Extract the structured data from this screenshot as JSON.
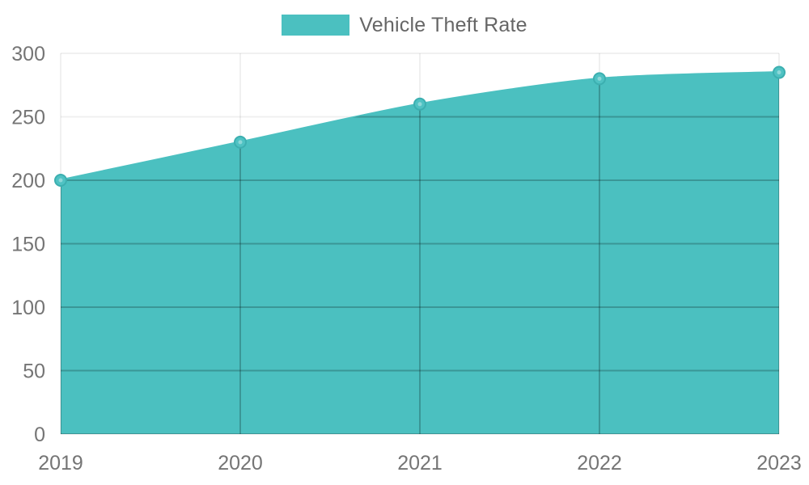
{
  "legend": {
    "label": "Vehicle Theft Rate"
  },
  "chart_data": {
    "type": "area",
    "categories": [
      "2019",
      "2020",
      "2021",
      "2022",
      "2023"
    ],
    "series": [
      {
        "name": "Vehicle Theft Rate",
        "values": [
          200,
          230,
          260,
          280,
          285
        ]
      }
    ],
    "title": "",
    "xlabel": "",
    "ylabel": "",
    "ylim": [
      0,
      300
    ],
    "yticks": [
      0,
      50,
      100,
      150,
      200,
      250,
      300
    ],
    "grid": true,
    "legend_position": "top-center",
    "line_smooth": true,
    "colors": {
      "series": "#4BC0C0",
      "point_fill": "#4FC2C3",
      "point_stroke": "#3CAFB0",
      "grid_over_fill": "rgba(0,0,0,0.22)",
      "grid_outside": "rgba(0,0,0,0.06)",
      "tick_text": "#757575",
      "legend_text": "#666666"
    }
  }
}
